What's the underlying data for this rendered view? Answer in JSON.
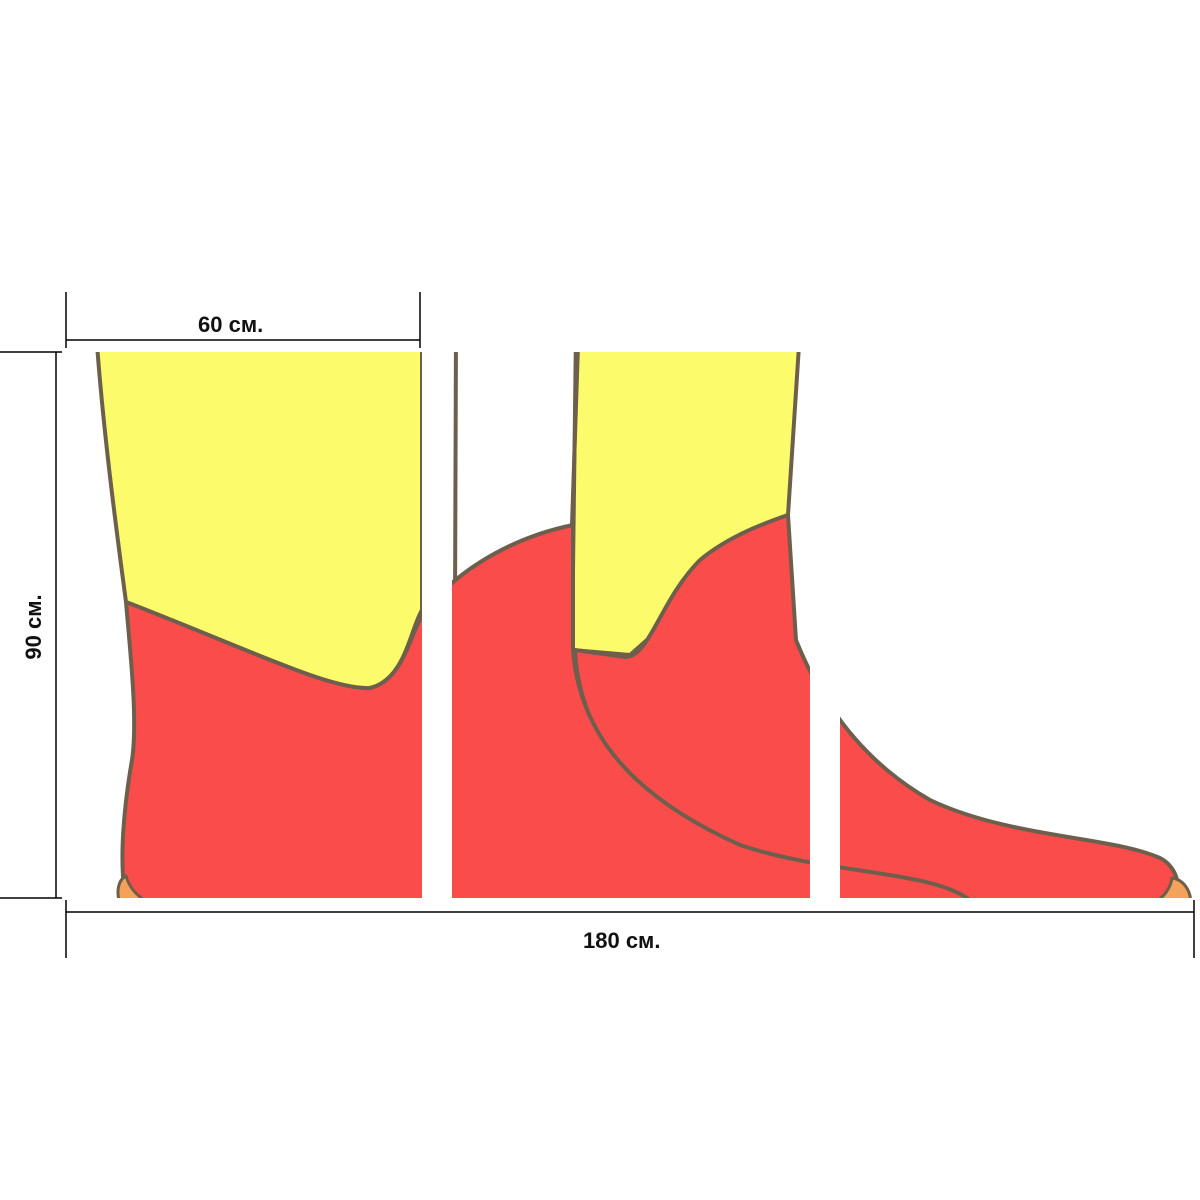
{
  "dimensions": {
    "panel_width": "60 см.",
    "total_width": "180 см.",
    "height": "90 см."
  },
  "panels": {
    "count": 3
  },
  "colors": {
    "leg": "#fbfb6b",
    "boot": "#fb4c4c",
    "outline": "#6e5f4c",
    "sole": "#f4a25a",
    "background": "#ffffff",
    "lines": "#000000"
  }
}
